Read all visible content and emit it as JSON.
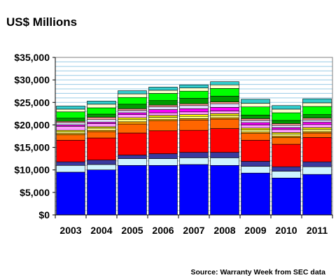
{
  "chart_data": {
    "type": "bar",
    "stacked": true,
    "title": "US$ Millions",
    "xlabel": "",
    "ylabel": "",
    "ylim": [
      0,
      35000
    ],
    "ytick_step": 5000,
    "grid_step": 1000,
    "grid": true,
    "legend": "none",
    "source": "Source: Warranty Week from SEC data",
    "categories": [
      "2003",
      "2004",
      "2005",
      "2006",
      "2007",
      "2008",
      "2009",
      "2010",
      "2011"
    ],
    "yticks": [
      "$0",
      "$5,000",
      "$10,000",
      "$15,000",
      "$20,000",
      "$25,000",
      "$30,000",
      "$35,000"
    ],
    "colors": {
      "plot_background": "#ffffff",
      "gridline": "#99cce6",
      "bar_outline": "#000000",
      "series": [
        "#0000ff",
        "#cff4ff",
        "#3a3a9e",
        "#ff0000",
        "#ff6600",
        "#ffa500",
        "#ffff80",
        "#ffff00",
        "#ff99ff",
        "#ff00ff",
        "#e0e0ff",
        "#ff9999",
        "#009900",
        "#00ff00",
        "#ffffcc",
        "#33cccc"
      ]
    },
    "series": [
      {
        "values": [
          9500,
          10000,
          11000,
          11000,
          11200,
          11000,
          9300,
          8200,
          9000
        ]
      },
      {
        "values": [
          1500,
          1200,
          1500,
          1500,
          1500,
          1700,
          1500,
          1500,
          1700
        ]
      },
      {
        "values": [
          800,
          1000,
          800,
          1100,
          1200,
          1200,
          1100,
          1000,
          1100
        ]
      },
      {
        "values": [
          4800,
          4900,
          4900,
          5100,
          4900,
          5300,
          4700,
          5000,
          5400
        ]
      },
      {
        "values": [
          1200,
          1400,
          2000,
          2200,
          2300,
          2100,
          1500,
          1500,
          1000
        ]
      },
      {
        "values": [
          300,
          300,
          500,
          300,
          300,
          300,
          300,
          300,
          300
        ]
      },
      {
        "values": [
          400,
          500,
          500,
          500,
          500,
          500,
          500,
          500,
          500
        ]
      },
      {
        "values": [
          300,
          300,
          400,
          400,
          400,
          400,
          400,
          300,
          400
        ]
      },
      {
        "values": [
          900,
          700,
          700,
          600,
          600,
          600,
          700,
          700,
          700
        ]
      },
      {
        "values": [
          300,
          300,
          400,
          700,
          700,
          800,
          500,
          400,
          500
        ]
      },
      {
        "values": [
          500,
          600,
          500,
          600,
          700,
          800,
          500,
          500,
          500
        ]
      },
      {
        "values": [
          300,
          500,
          400,
          400,
          400,
          400,
          400,
          400,
          400
        ]
      },
      {
        "values": [
          700,
          700,
          1000,
          1000,
          1200,
          1300,
          800,
          700,
          800
        ]
      },
      {
        "values": [
          1400,
          1400,
          1500,
          1600,
          1600,
          1700,
          1800,
          1700,
          1800
        ]
      },
      {
        "values": [
          600,
          800,
          800,
          700,
          700,
          800,
          800,
          800,
          800
        ]
      },
      {
        "values": [
          700,
          700,
          700,
          700,
          700,
          700,
          900,
          800,
          900
        ]
      }
    ]
  }
}
